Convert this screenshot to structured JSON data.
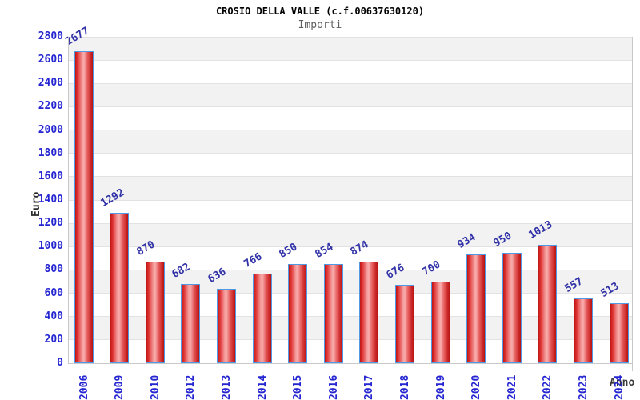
{
  "chart_data": {
    "type": "bar",
    "title": "CROSIO DELLA VALLE (c.f.00637630120)",
    "subtitle": "Importi",
    "xlabel": "Anno",
    "ylabel": "Euro",
    "categories": [
      "2006",
      "2009",
      "2010",
      "2012",
      "2013",
      "2014",
      "2015",
      "2016",
      "2017",
      "2018",
      "2019",
      "2020",
      "2021",
      "2022",
      "2023",
      "2024"
    ],
    "values": [
      2677,
      1292,
      870,
      682,
      636,
      766,
      850,
      854,
      874,
      676,
      700,
      934,
      950,
      1013,
      557,
      513
    ],
    "ylim": [
      0,
      2800
    ],
    "ytick_step": 200,
    "grid": "horizontal gridlines with alternating gray/white bands",
    "legend_position": "none",
    "colors": {
      "bar_fill_edge": "#c01515",
      "bar_fill_center": "#f8adad",
      "bar_border": "#4f9ae4",
      "tick_label": "#2525d2",
      "value_label": "#3232a8",
      "band_gray": "#f2f2f2",
      "grid_line": "#e2e2e2",
      "axis_line": "#c9c9c9",
      "title": "#000000",
      "subtitle": "#606060",
      "axis_title": "#2b2b2b"
    }
  }
}
